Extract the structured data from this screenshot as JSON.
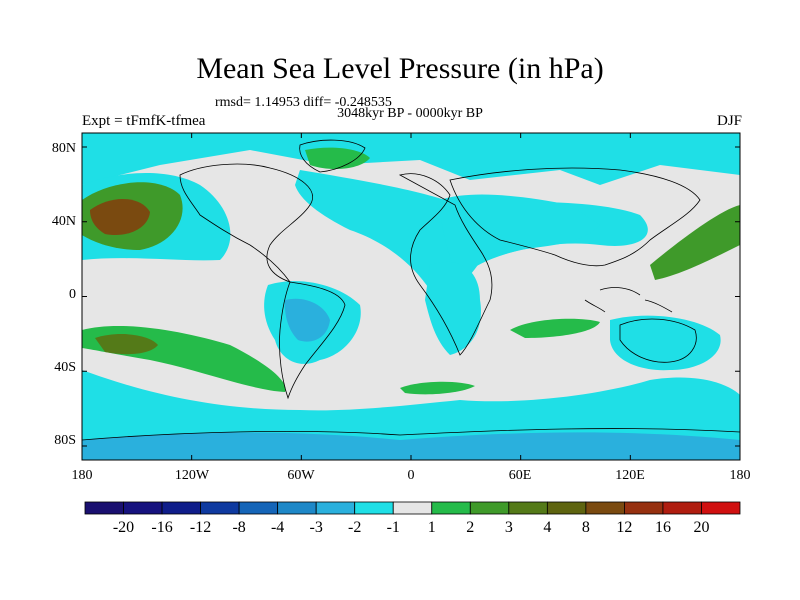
{
  "title": "Mean Sea Level Pressure (in hPa)",
  "stats": "rmsd= 1.14953 diff= -0.248535",
  "period": "3048kyr BP - 0000kyr BP",
  "experiment": "Expt = tFmfK-tfmea",
  "season": "DJF",
  "axes": {
    "x_ticks": [
      "180",
      "120W",
      "60W",
      "0",
      "60E",
      "120E",
      "180"
    ],
    "y_ticks": [
      "80N",
      "40N",
      "0",
      "40S",
      "80S"
    ]
  },
  "colorbar": {
    "labels": [
      "-20",
      "-16",
      "-12",
      "-8",
      "-4",
      "-3",
      "-2",
      "-1",
      "1",
      "2",
      "3",
      "4",
      "8",
      "12",
      "16",
      "20"
    ],
    "colors": [
      "#1a1070",
      "#16127e",
      "#0f1d8a",
      "#0f3aa0",
      "#1565b8",
      "#1e88c8",
      "#2ab0dd",
      "#1fdfe6",
      "#e6e6e6",
      "#25bb4a",
      "#3f9a2a",
      "#547a18",
      "#5e6410",
      "#7a4a10",
      "#963010",
      "#b01d10",
      "#d01010"
    ]
  },
  "palette": {
    "neutral": "#e6e6e6",
    "neg1": "#1fdfe6",
    "neg2": "#2ab0dd",
    "neg3": "#1e88c8",
    "pos1": "#25bb4a",
    "pos2": "#3f9a2a",
    "pos3": "#547a18",
    "pos4": "#7a4a10"
  }
}
